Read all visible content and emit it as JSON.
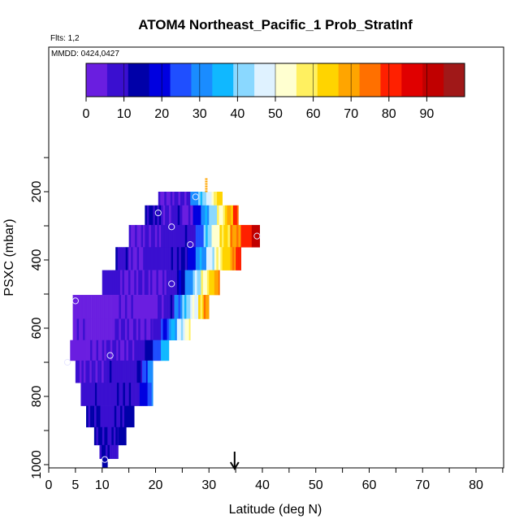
{
  "chart_data": {
    "type": "heatmap",
    "title": "ATOM4 Northeast_Pacific_1 Prob_StratInf",
    "subtitle": "Flts: 1,2",
    "inset_label": "MMDD: 0424,0427",
    "xlabel": "Latitude (deg N)",
    "ylabel": "PSXC (mbar)",
    "x_ticks": [
      "0",
      "5",
      "10",
      "20",
      "30",
      "40",
      "50",
      "60",
      "70",
      "80"
    ],
    "x_tick_values": [
      0,
      5,
      10,
      20,
      30,
      40,
      50,
      60,
      70,
      80
    ],
    "y_ticks": [
      "200",
      "400",
      "600",
      "800",
      "1000"
    ],
    "y_tick_values": [
      200,
      400,
      600,
      800,
      1000
    ],
    "xlim": [
      0,
      85
    ],
    "ylim": [
      1010,
      0
    ],
    "colorbar": {
      "ticks": [
        "0",
        "10",
        "20",
        "30",
        "40",
        "50",
        "60",
        "70",
        "80",
        "90"
      ],
      "tick_values": [
        0,
        10,
        20,
        30,
        40,
        50,
        60,
        70,
        80,
        90
      ],
      "range": [
        0,
        100
      ],
      "colors": [
        "#6a1ee0",
        "#3a0fd0",
        "#0000a8",
        "#0000e0",
        "#1f4fff",
        "#1a8cff",
        "#10b8ff",
        "#8ad8ff",
        "#dff2ff",
        "#ffffd0",
        "#fff060",
        "#ffd400",
        "#ffa500",
        "#ff7000",
        "#ff2000",
        "#e00000",
        "#c00000",
        "#a01818"
      ]
    },
    "grid": false,
    "marker_arrow_lat": 34.8,
    "rows": [
      {
        "p": 215,
        "lat_start": 20.5,
        "lat_end": 32.5,
        "dir": "bottom-up",
        "segments": [
          [
            20.5,
            5
          ],
          [
            23.5,
            7
          ],
          [
            26.5,
            30
          ],
          [
            28,
            40
          ],
          [
            29.5,
            48
          ],
          [
            30.5,
            55
          ],
          [
            31.5,
            65
          ]
        ]
      },
      {
        "p": 265,
        "lat_start": 18,
        "lat_end": 35.5,
        "dir": "",
        "segments": [
          [
            18,
            12
          ],
          [
            21,
            6
          ],
          [
            23,
            9
          ],
          [
            25,
            4
          ],
          [
            27,
            20
          ],
          [
            28.5,
            32
          ],
          [
            30,
            42
          ],
          [
            31.5,
            55
          ],
          [
            33,
            68
          ],
          [
            34.5,
            78
          ]
        ]
      },
      {
        "p": 330,
        "lat_start": 15,
        "lat_end": 39.5,
        "dir": "",
        "segments": [
          [
            15,
            4
          ],
          [
            18,
            6
          ],
          [
            21,
            8
          ],
          [
            24,
            10
          ],
          [
            26.5,
            8
          ],
          [
            27.5,
            25
          ],
          [
            29,
            40
          ],
          [
            30.5,
            52
          ],
          [
            32,
            62
          ],
          [
            34,
            72
          ],
          [
            36,
            80
          ],
          [
            38,
            92
          ]
        ]
      },
      {
        "p": 395,
        "lat_start": 12.5,
        "lat_end": 36,
        "dir": "",
        "segments": [
          [
            12.5,
            10
          ],
          [
            15,
            5
          ],
          [
            18,
            8
          ],
          [
            21,
            9
          ],
          [
            24,
            12
          ],
          [
            26,
            18
          ],
          [
            27.5,
            32
          ],
          [
            29.5,
            46
          ],
          [
            31,
            55
          ],
          [
            32.5,
            64
          ],
          [
            34,
            72
          ],
          [
            35,
            80
          ]
        ]
      },
      {
        "p": 465,
        "lat_start": 10,
        "lat_end": 32,
        "dir": "",
        "segments": [
          [
            10,
            8
          ],
          [
            13,
            5
          ],
          [
            16,
            6
          ],
          [
            19,
            4
          ],
          [
            22,
            8
          ],
          [
            24,
            16
          ],
          [
            25.5,
            30
          ],
          [
            27,
            44
          ],
          [
            28.5,
            55
          ],
          [
            30,
            64
          ],
          [
            31,
            72
          ]
        ]
      },
      {
        "p": 540,
        "lat_start": 4.5,
        "lat_end": 30,
        "dir": "",
        "segments": [
          [
            4.5,
            3
          ],
          [
            8,
            2
          ],
          [
            12,
            4
          ],
          [
            16,
            3
          ],
          [
            20,
            7
          ],
          [
            22,
            10
          ],
          [
            23.5,
            28
          ],
          [
            25,
            40
          ],
          [
            26.5,
            50
          ],
          [
            28,
            62
          ],
          [
            29,
            72
          ]
        ]
      },
      {
        "p": 605,
        "lat_start": 4.5,
        "lat_end": 26.5,
        "dir": "",
        "segments": [
          [
            4.5,
            4
          ],
          [
            8,
            3
          ],
          [
            12,
            6
          ],
          [
            16,
            5
          ],
          [
            19.5,
            9
          ],
          [
            21,
            22
          ],
          [
            22.5,
            34
          ],
          [
            24,
            45
          ],
          [
            25.5,
            54
          ]
        ]
      },
      {
        "p": 665,
        "lat_start": 4,
        "lat_end": 22.5,
        "dir": "",
        "segments": [
          [
            4,
            2
          ],
          [
            7,
            5
          ],
          [
            10,
            7
          ],
          [
            13,
            6
          ],
          [
            16,
            8
          ],
          [
            18,
            14
          ],
          [
            19.5,
            26
          ],
          [
            21,
            36
          ]
        ]
      },
      {
        "p": 725,
        "lat_start": 5,
        "lat_end": 19.5,
        "dir": "",
        "segments": [
          [
            5,
            6
          ],
          [
            8,
            7
          ],
          [
            11,
            9
          ],
          [
            14,
            8
          ],
          [
            16.5,
            12
          ],
          [
            17.5,
            24
          ],
          [
            18.5,
            30
          ]
        ]
      },
      {
        "p": 795,
        "lat_start": 6,
        "lat_end": 19.5,
        "dir": "",
        "segments": [
          [
            6,
            9
          ],
          [
            9,
            8
          ],
          [
            12,
            10
          ],
          [
            15,
            9
          ],
          [
            17,
            18
          ],
          [
            18.5,
            26
          ]
        ]
      },
      {
        "p": 860,
        "lat_start": 7,
        "lat_end": 16,
        "dir": "",
        "segments": [
          [
            7,
            12
          ],
          [
            10,
            9
          ],
          [
            13,
            11
          ],
          [
            14.5,
            14
          ]
        ]
      },
      {
        "p": 920,
        "lat_start": 8.5,
        "lat_end": 14.5,
        "dir": "",
        "segments": [
          [
            8.5,
            12
          ],
          [
            11,
            10
          ],
          [
            13,
            14
          ]
        ]
      },
      {
        "p": 965,
        "lat_start": 9.5,
        "lat_end": 13,
        "dir": "",
        "segments": [
          [
            9.5,
            12
          ],
          [
            11.5,
            10
          ]
        ]
      },
      {
        "p": 1000,
        "lat_start": 10,
        "lat_end": 11,
        "dir": "",
        "segments": [
          [
            10,
            14
          ]
        ]
      }
    ],
    "cap": [
      {
        "lat": 29.5,
        "p": 175,
        "value": 70
      }
    ],
    "circles": [
      {
        "lat": 27.5,
        "p": 215
      },
      {
        "lat": 20.5,
        "p": 262
      },
      {
        "lat": 23,
        "p": 303
      },
      {
        "lat": 39,
        "p": 330
      },
      {
        "lat": 26.5,
        "p": 355
      },
      {
        "lat": 23,
        "p": 470
      },
      {
        "lat": 5,
        "p": 520
      },
      {
        "lat": 11.5,
        "p": 680
      },
      {
        "lat": 3.5,
        "p": 700
      },
      {
        "lat": 10.5,
        "p": 985
      }
    ]
  }
}
